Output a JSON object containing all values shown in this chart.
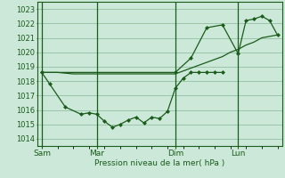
{
  "bg_color": "#cce8d8",
  "grid_color": "#88b898",
  "line_color": "#1a5c1a",
  "marker_color": "#1a5c1a",
  "xlabel": "Pression niveau de la mer( hPa )",
  "ylim": [
    1013.5,
    1023.5
  ],
  "yticks": [
    1014,
    1015,
    1016,
    1017,
    1018,
    1019,
    1020,
    1021,
    1022,
    1023
  ],
  "xtick_labels": [
    "Sam",
    "Mar",
    "Dim",
    "Lun"
  ],
  "xtick_positions": [
    0,
    3.5,
    8.5,
    12.5
  ],
  "vline_positions": [
    0,
    3.5,
    8.5,
    12.5
  ],
  "series1_x": [
    0,
    0.5,
    1.5,
    2.5,
    3.0,
    3.5,
    4.0,
    4.5,
    5.0,
    5.5,
    6.0,
    6.5,
    7.0,
    7.5,
    8.0,
    8.5,
    9.0,
    9.5,
    10.0,
    10.5,
    11.0,
    11.5
  ],
  "series1_y": [
    1018.6,
    1017.8,
    1016.2,
    1015.7,
    1015.8,
    1015.7,
    1015.2,
    1014.8,
    1015.0,
    1015.3,
    1015.5,
    1015.1,
    1015.5,
    1015.4,
    1015.9,
    1017.5,
    1018.2,
    1018.6,
    1018.6,
    1018.6,
    1018.6,
    1018.6
  ],
  "series2_x": [
    0,
    1,
    2,
    3,
    4,
    5,
    6,
    7,
    8,
    8.5,
    9,
    9.5,
    10,
    10.5,
    11,
    11.5,
    12,
    12.5,
    13,
    13.5,
    14,
    14.5,
    15
  ],
  "series2_y": [
    1018.6,
    1018.6,
    1018.5,
    1018.5,
    1018.5,
    1018.5,
    1018.5,
    1018.5,
    1018.5,
    1018.5,
    1018.7,
    1018.9,
    1019.1,
    1019.3,
    1019.5,
    1019.7,
    1020.0,
    1020.2,
    1020.5,
    1020.7,
    1021.0,
    1021.1,
    1021.2
  ],
  "series3_x": [
    0,
    8.5,
    9.5,
    10.5,
    11.5,
    12.5,
    13.0,
    13.5,
    14.0,
    14.5,
    15
  ],
  "series3_y": [
    1018.6,
    1018.6,
    1019.6,
    1021.7,
    1021.9,
    1019.9,
    1022.2,
    1022.3,
    1022.5,
    1022.2,
    1021.2
  ],
  "xlim": [
    -0.3,
    15.3
  ]
}
